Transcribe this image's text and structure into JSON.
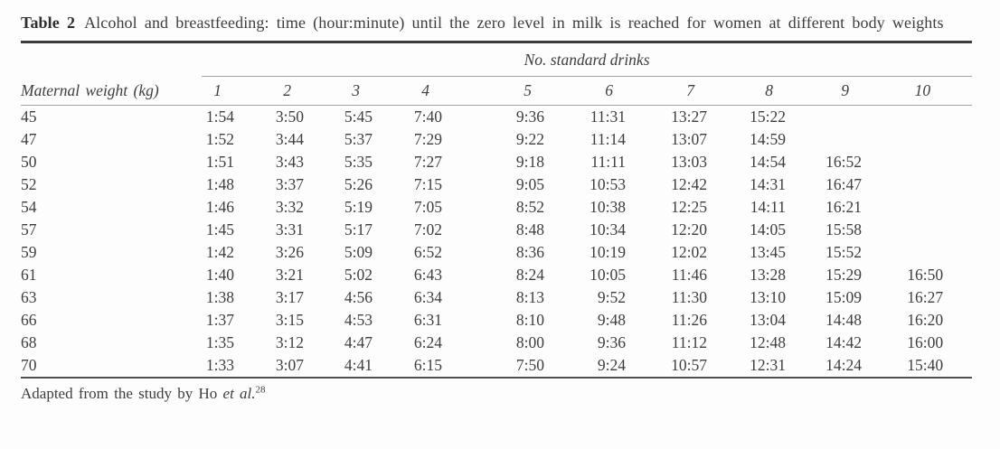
{
  "title": {
    "label": "Table 2",
    "text": "Alcohol and breastfeeding: time (hour:minute) until the zero level in milk is reached for women at different body weights"
  },
  "table": {
    "group_header": "No. standard drinks",
    "weight_header": "Maternal weight (kg)",
    "drink_columns": [
      "1",
      "2",
      "3",
      "4",
      "5",
      "6",
      "7",
      "8",
      "9",
      "10"
    ],
    "rows": [
      {
        "weight": "45",
        "times": [
          "1:54",
          "3:50",
          "5:45",
          "7:40",
          "9:36",
          "11:31",
          "13:27",
          "15:22",
          "",
          ""
        ]
      },
      {
        "weight": "47",
        "times": [
          "1:52",
          "3:44",
          "5:37",
          "7:29",
          "9:22",
          "11:14",
          "13:07",
          "14:59",
          "",
          ""
        ]
      },
      {
        "weight": "50",
        "times": [
          "1:51",
          "3:43",
          "5:35",
          "7:27",
          "9:18",
          "11:11",
          "13:03",
          "14:54",
          "16:52",
          ""
        ]
      },
      {
        "weight": "52",
        "times": [
          "1:48",
          "3:37",
          "5:26",
          "7:15",
          "9:05",
          "10:53",
          "12:42",
          "14:31",
          "16:47",
          ""
        ]
      },
      {
        "weight": "54",
        "times": [
          "1:46",
          "3:32",
          "5:19",
          "7:05",
          "8:52",
          "10:38",
          "12:25",
          "14:11",
          "16:21",
          ""
        ]
      },
      {
        "weight": "57",
        "times": [
          "1:45",
          "3:31",
          "5:17",
          "7:02",
          "8:48",
          "10:34",
          "12:20",
          "14:05",
          "15:58",
          ""
        ]
      },
      {
        "weight": "59",
        "times": [
          "1:42",
          "3:26",
          "5:09",
          "6:52",
          "8:36",
          "10:19",
          "12:02",
          "13:45",
          "15:52",
          ""
        ]
      },
      {
        "weight": "61",
        "times": [
          "1:40",
          "3:21",
          "5:02",
          "6:43",
          "8:24",
          "10:05",
          "11:46",
          "13:28",
          "15:29",
          "16:50"
        ]
      },
      {
        "weight": "63",
        "times": [
          "1:38",
          "3:17",
          "4:56",
          "6:34",
          "8:13",
          "9:52",
          "11:30",
          "13:10",
          "15:09",
          "16:27"
        ]
      },
      {
        "weight": "66",
        "times": [
          "1:37",
          "3:15",
          "4:53",
          "6:31",
          "8:10",
          "9:48",
          "11:26",
          "13:04",
          "14:48",
          "16:20"
        ]
      },
      {
        "weight": "68",
        "times": [
          "1:35",
          "3:12",
          "4:47",
          "6:24",
          "8:00",
          "9:36",
          "11:12",
          "12:48",
          "14:42",
          "16:00"
        ]
      },
      {
        "weight": "70",
        "times": [
          "1:33",
          "3:07",
          "4:41",
          "6:15",
          "7:50",
          "9:24",
          "10:57",
          "12:31",
          "14:24",
          "15:40"
        ]
      }
    ]
  },
  "footnote": {
    "prefix": "Adapted from the study by Ho ",
    "etal": "et al.",
    "ref_number": "28"
  },
  "colors": {
    "text": "#3b3b3b",
    "rule_dark": "#3c3c3c",
    "rule_medium": "#4e4e4e",
    "rule_light": "#a3a3a3",
    "background": "#fdfdfd"
  }
}
